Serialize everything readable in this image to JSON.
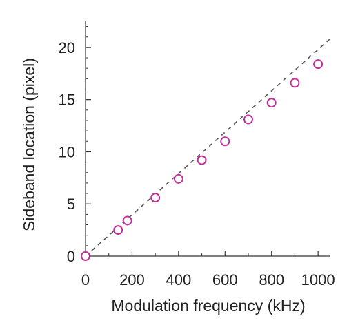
{
  "chart_data": {
    "type": "scatter",
    "title": "",
    "xlabel": "Modulation frequency (kHz)",
    "ylabel": "Sideband location (pixel)",
    "xlim": [
      0,
      1050
    ],
    "ylim": [
      0,
      22.5
    ],
    "x_ticks": [
      0,
      200,
      400,
      600,
      800,
      1000
    ],
    "x_tick_labels": [
      "0",
      "200",
      "400",
      "600",
      "800",
      "1000"
    ],
    "y_ticks": [
      0,
      5,
      10,
      15,
      20
    ],
    "y_tick_labels": [
      "0",
      "5",
      "10",
      "15",
      "20"
    ],
    "x_minor_step": 100,
    "y_minor_step": 1,
    "grid": false,
    "legend": "none",
    "marker_color": "#c0309a",
    "fit_line_color": "#555555",
    "series": [
      {
        "x": [
          0,
          140,
          180,
          300,
          400,
          500,
          600,
          700,
          800,
          900,
          1000
        ],
        "y": [
          0,
          2.5,
          3.4,
          5.6,
          7.4,
          9.2,
          11.0,
          13.1,
          14.7,
          16.6,
          18.4
        ]
      }
    ],
    "fit_line": {
      "style": "dashed",
      "slope": 0.0198,
      "intercept": 0.0,
      "x_range": [
        0,
        1050
      ]
    }
  }
}
